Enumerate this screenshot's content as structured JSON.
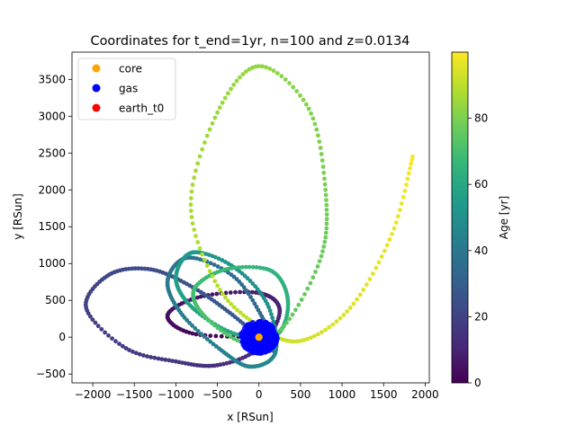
{
  "chart_data": {
    "type": "scatter",
    "title": "Coordinates for t_end=1yr, n=100 and z=0.0134",
    "xlabel": "x [RSun]",
    "ylabel": "y [RSun]",
    "xlim": [
      -2250,
      2050
    ],
    "ylim": [
      -620,
      3870
    ],
    "x_ticks": [
      "−2000",
      "−1500",
      "−1000",
      "−500",
      "0",
      "500",
      "1000",
      "1500",
      "2000"
    ],
    "y_ticks": [
      "−500",
      "0",
      "500",
      "1000",
      "1500",
      "2000",
      "2500",
      "3000",
      "3500"
    ],
    "grid": false,
    "legend_position": "top-left",
    "colorbar": {
      "label": "Age [yr]",
      "colormap": "viridis",
      "range": [
        0,
        100
      ],
      "ticks": [
        "0",
        "20",
        "40",
        "60",
        "80"
      ]
    },
    "series": [
      {
        "name": "core",
        "color": "#ffa500",
        "points": [
          [
            0,
            0
          ]
        ]
      },
      {
        "name": "gas",
        "color": "#0000ff",
        "center": [
          0,
          0
        ],
        "radius": 220,
        "count": 400
      },
      {
        "name": "earth_t0",
        "color": "#ff0000",
        "points": []
      },
      {
        "name": "earth trajectory",
        "colored_by": "Age [yr]",
        "age_range": [
          0,
          99
        ],
        "waypoints": [
          [
            0,
            0
          ],
          [
            -800,
            50
          ],
          [
            -1100,
            300
          ],
          [
            -700,
            550
          ],
          [
            0,
            600
          ],
          [
            250,
            350
          ],
          [
            0,
            -150
          ],
          [
            -500,
            -380
          ],
          [
            -1000,
            -330
          ],
          [
            -1600,
            -150
          ],
          [
            -2080,
            400
          ],
          [
            -1800,
            850
          ],
          [
            -1300,
            920
          ],
          [
            -800,
            680
          ],
          [
            -350,
            330
          ],
          [
            50,
            -50
          ],
          [
            200,
            -180
          ],
          [
            50,
            250
          ],
          [
            -300,
            820
          ],
          [
            -850,
            1080
          ],
          [
            -1100,
            760
          ],
          [
            -920,
            300
          ],
          [
            -450,
            -180
          ],
          [
            -100,
            -400
          ],
          [
            200,
            -200
          ],
          [
            100,
            450
          ],
          [
            -300,
            950
          ],
          [
            -800,
            1150
          ],
          [
            -1000,
            800
          ],
          [
            -800,
            400
          ],
          [
            -300,
            50
          ],
          [
            200,
            20
          ],
          [
            350,
            480
          ],
          [
            150,
            900
          ],
          [
            -400,
            920
          ],
          [
            -780,
            650
          ],
          [
            -650,
            280
          ],
          [
            -150,
            -80
          ],
          [
            300,
            150
          ],
          [
            750,
            1100
          ],
          [
            800,
            2000
          ],
          [
            600,
            3100
          ],
          [
            0,
            3680
          ],
          [
            -500,
            3050
          ],
          [
            -820,
            1800
          ],
          [
            -500,
            700
          ],
          [
            0,
            150
          ],
          [
            500,
            -50
          ],
          [
            1100,
            400
          ],
          [
            1600,
            1400
          ],
          [
            1850,
            2450
          ]
        ]
      }
    ]
  }
}
